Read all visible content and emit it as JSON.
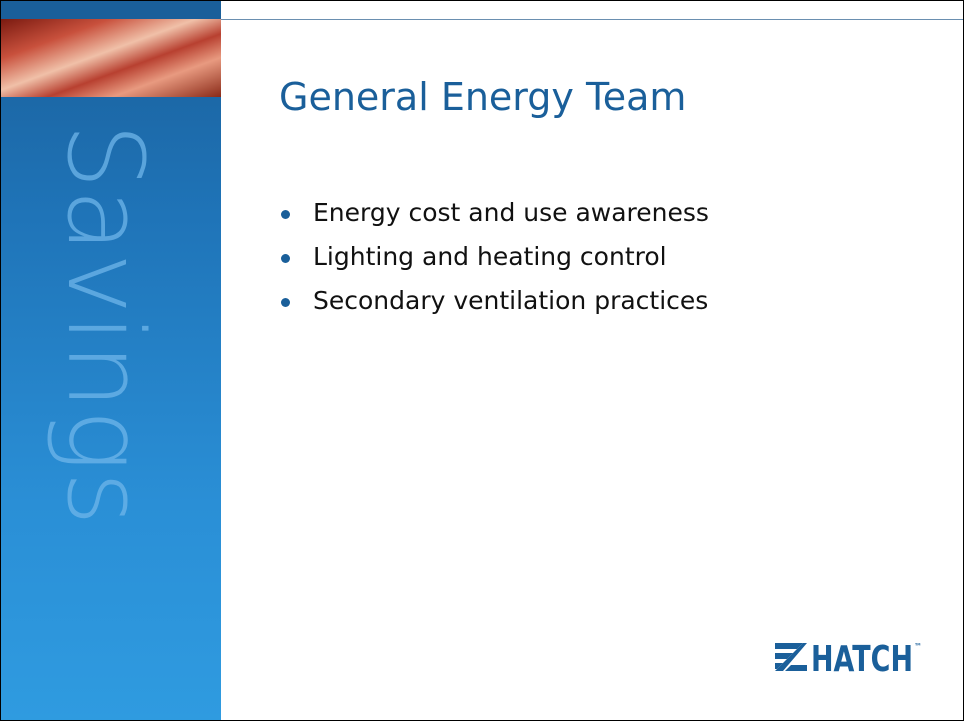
{
  "sidebar": {
    "word": "Savings"
  },
  "title": "General Energy Team",
  "bullets": [
    "Energy cost and use awareness",
    "Lighting and heating control",
    "Secondary ventilation practices"
  ],
  "logo": {
    "text": "HATCH",
    "mark": "™"
  }
}
